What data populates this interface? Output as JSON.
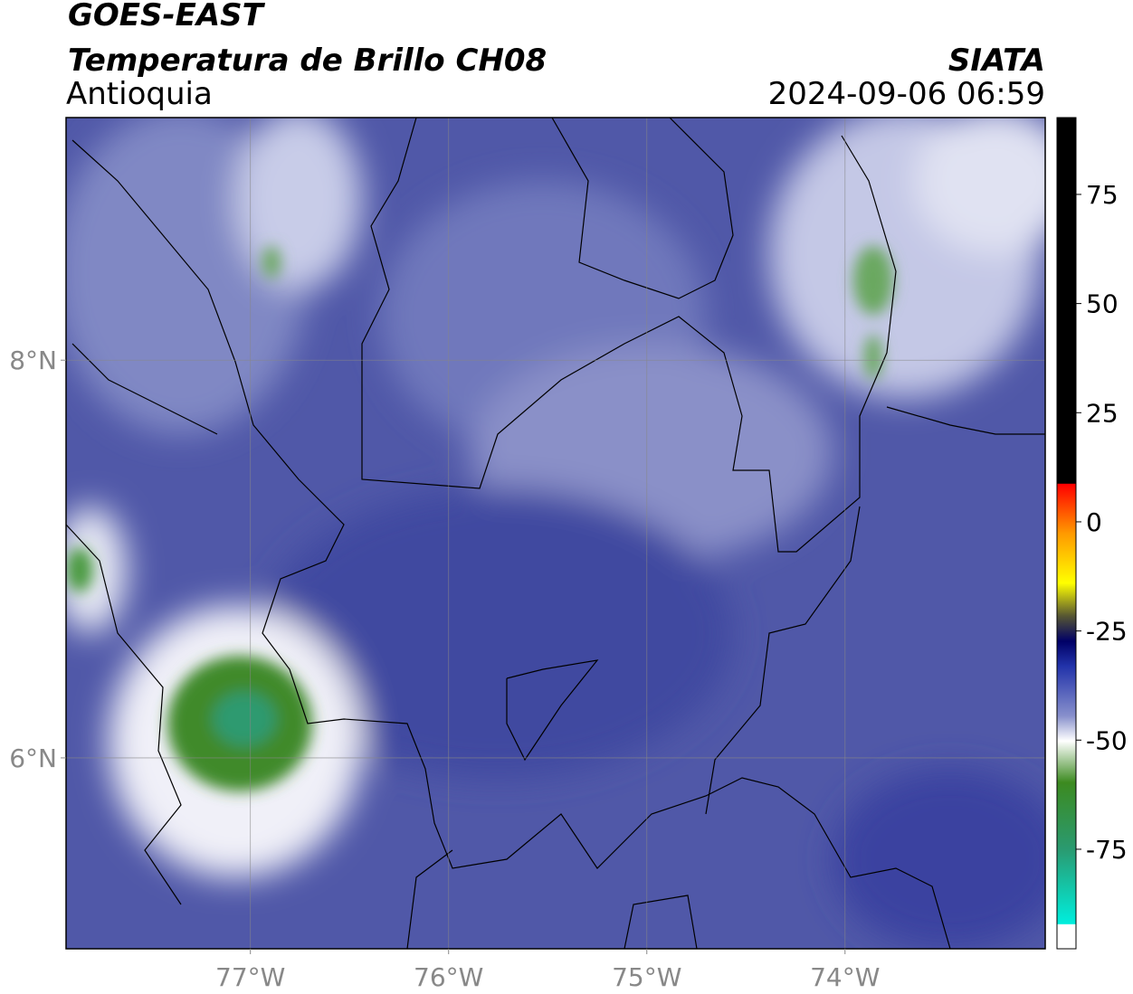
{
  "header": {
    "satellite": "GOES-EAST",
    "product": "Temperatura de Brillo CH08",
    "region": "Antioquia",
    "source": "SIATA",
    "datetime": "2024-09-06 06:59"
  },
  "map": {
    "lonlim": [
      -77.93,
      -72.99
    ],
    "latlim": [
      5.04,
      9.22
    ],
    "lon_ticks": [
      {
        "value": -77,
        "label": "77°W"
      },
      {
        "value": -76,
        "label": "76°W"
      },
      {
        "value": -75,
        "label": "75°W"
      },
      {
        "value": -74,
        "label": "74°W"
      }
    ],
    "lat_ticks": [
      {
        "value": 8,
        "label": "8°N"
      },
      {
        "value": 6,
        "label": "6°N"
      }
    ]
  },
  "colorbar": {
    "lim": [
      -97.8,
      92.6
    ],
    "ticks": [
      75,
      50,
      25,
      0,
      -25,
      -50,
      -75
    ]
  }
}
